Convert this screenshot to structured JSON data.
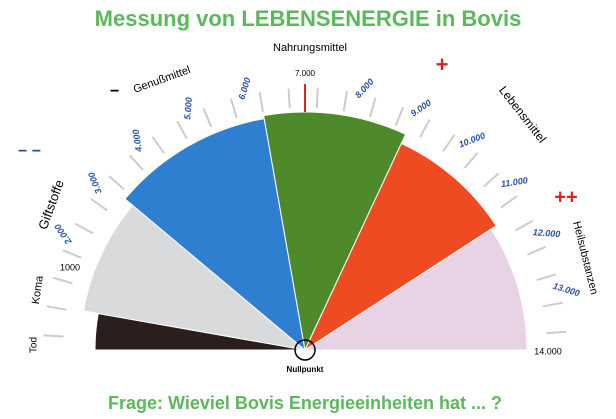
{
  "header": {
    "title": "Messung von LEBENSENERGIE in Bovis"
  },
  "footer": {
    "question": "Frage: Wieviel Bovis Energieeinheiten hat ... ?"
  },
  "gauge": {
    "top_label": "Nahrungsmittel",
    "top_value": "7.000",
    "left_value": "1000",
    "right_value": "14.000",
    "center_label": "Nullpunkt",
    "sectors": [
      {
        "label": "Tod"
      },
      {
        "label": "Koma"
      },
      {
        "label": "Giftstoffe"
      },
      {
        "label": "Genußmittel"
      },
      {
        "label": "Lebensmittel"
      },
      {
        "label": "Heilsubstanzen"
      }
    ],
    "signs": {
      "minus": "−",
      "minus_minus": "− −",
      "plus": "+",
      "plus_plus": "++"
    },
    "scale_labels": [
      "2.000",
      "3.000",
      "4.000",
      "5.000",
      "6.000",
      "8.000",
      "9.000",
      "10.000",
      "11.000",
      "12.000",
      "13.000"
    ]
  }
}
